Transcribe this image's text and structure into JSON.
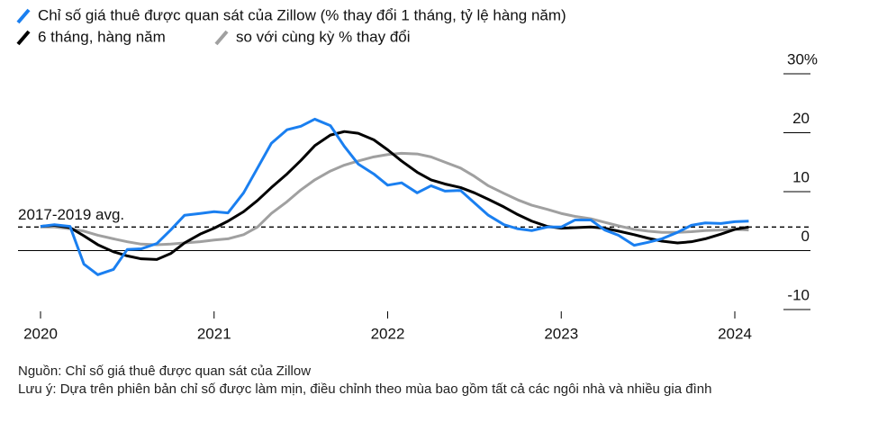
{
  "chart_data": {
    "type": "line",
    "legend": "top-left",
    "source": "Nguồn: Chỉ số giá thuê được quan sát của Zillow",
    "note": "Lưu ý: Dựa trên phiên bản chỉ số được làm mịn, điều chỉnh theo mùa bao gồm tất cả các ngôi nhà và nhiều gia đình",
    "avg": {
      "label": "2017-2019 avg.",
      "value": 4
    },
    "x": [
      2020.0,
      2020.08,
      2020.17,
      2020.25,
      2020.33,
      2020.42,
      2020.5,
      2020.58,
      2020.67,
      2020.75,
      2020.83,
      2020.92,
      2021.0,
      2021.08,
      2021.17,
      2021.25,
      2021.33,
      2021.42,
      2021.5,
      2021.58,
      2021.67,
      2021.75,
      2021.83,
      2021.92,
      2022.0,
      2022.08,
      2022.17,
      2022.25,
      2022.33,
      2022.42,
      2022.5,
      2022.58,
      2022.67,
      2022.75,
      2022.83,
      2022.92,
      2023.0,
      2023.08,
      2023.17,
      2023.25,
      2023.33,
      2023.42,
      2023.5,
      2023.58,
      2023.67,
      2023.75,
      2023.83,
      2023.92,
      2024.0,
      2024.08
    ],
    "series": [
      {
        "name": "Chỉ số giá thuê được quan sát của Zillow (% thay đổi 1 tháng, tỷ lệ hàng năm)",
        "color": "#1a7ff0",
        "values": [
          4.1,
          4.4,
          4.1,
          -2.3,
          -4.1,
          -3.2,
          0.2,
          0.3,
          1.2,
          3.5,
          6.0,
          6.3,
          6.6,
          6.4,
          9.8,
          14.0,
          18.2,
          20.5,
          21.1,
          22.3,
          21.2,
          17.7,
          14.7,
          13.0,
          11.1,
          11.5,
          9.8,
          11.0,
          10.1,
          10.2,
          8.1,
          6.0,
          4.4,
          3.7,
          3.4,
          4.0,
          4.0,
          5.2,
          5.2,
          3.5,
          2.6,
          0.9,
          1.4,
          2.0,
          3.1,
          4.3,
          4.7,
          4.6,
          4.9,
          5.0
        ]
      },
      {
        "name": "6 tháng, hàng năm",
        "color": "#000000",
        "values": [
          4.1,
          4.3,
          3.9,
          2.5,
          1.0,
          -0.2,
          -0.9,
          -1.4,
          -1.5,
          -0.5,
          1.3,
          2.8,
          3.8,
          5.0,
          6.6,
          8.5,
          10.7,
          13.0,
          15.3,
          17.8,
          19.6,
          20.2,
          19.9,
          18.8,
          17.1,
          15.2,
          13.3,
          12.0,
          11.3,
          10.7,
          9.8,
          8.7,
          7.4,
          6.1,
          5.0,
          4.1,
          3.8,
          3.9,
          4.0,
          3.8,
          3.3,
          2.7,
          2.1,
          1.6,
          1.3,
          1.5,
          2.0,
          2.8,
          3.6,
          4.0
        ]
      },
      {
        "name": "so với cùng kỳ % thay đổi",
        "color": "#a0a0a0",
        "values": [
          4.0,
          4.0,
          3.7,
          3.3,
          2.6,
          2.0,
          1.5,
          1.1,
          1.0,
          1.1,
          1.3,
          1.5,
          1.8,
          2.0,
          2.7,
          4.0,
          6.3,
          8.3,
          10.3,
          12.0,
          13.5,
          14.5,
          15.2,
          15.9,
          16.3,
          16.5,
          16.4,
          15.9,
          15.0,
          14.0,
          12.6,
          11.0,
          9.7,
          8.6,
          7.7,
          7.0,
          6.3,
          5.8,
          5.4,
          4.8,
          4.2,
          3.6,
          3.3,
          3.1,
          3.1,
          3.2,
          3.4,
          3.5,
          3.6,
          3.5
        ]
      }
    ],
    "xlim": [
      2020,
      2024
    ],
    "xticks": [
      2020,
      2021,
      2022,
      2023,
      2024
    ],
    "ylim": [
      -10,
      30
    ],
    "yticks": [
      {
        "value": 30,
        "label": "30%"
      },
      20,
      10,
      0,
      -10
    ]
  }
}
